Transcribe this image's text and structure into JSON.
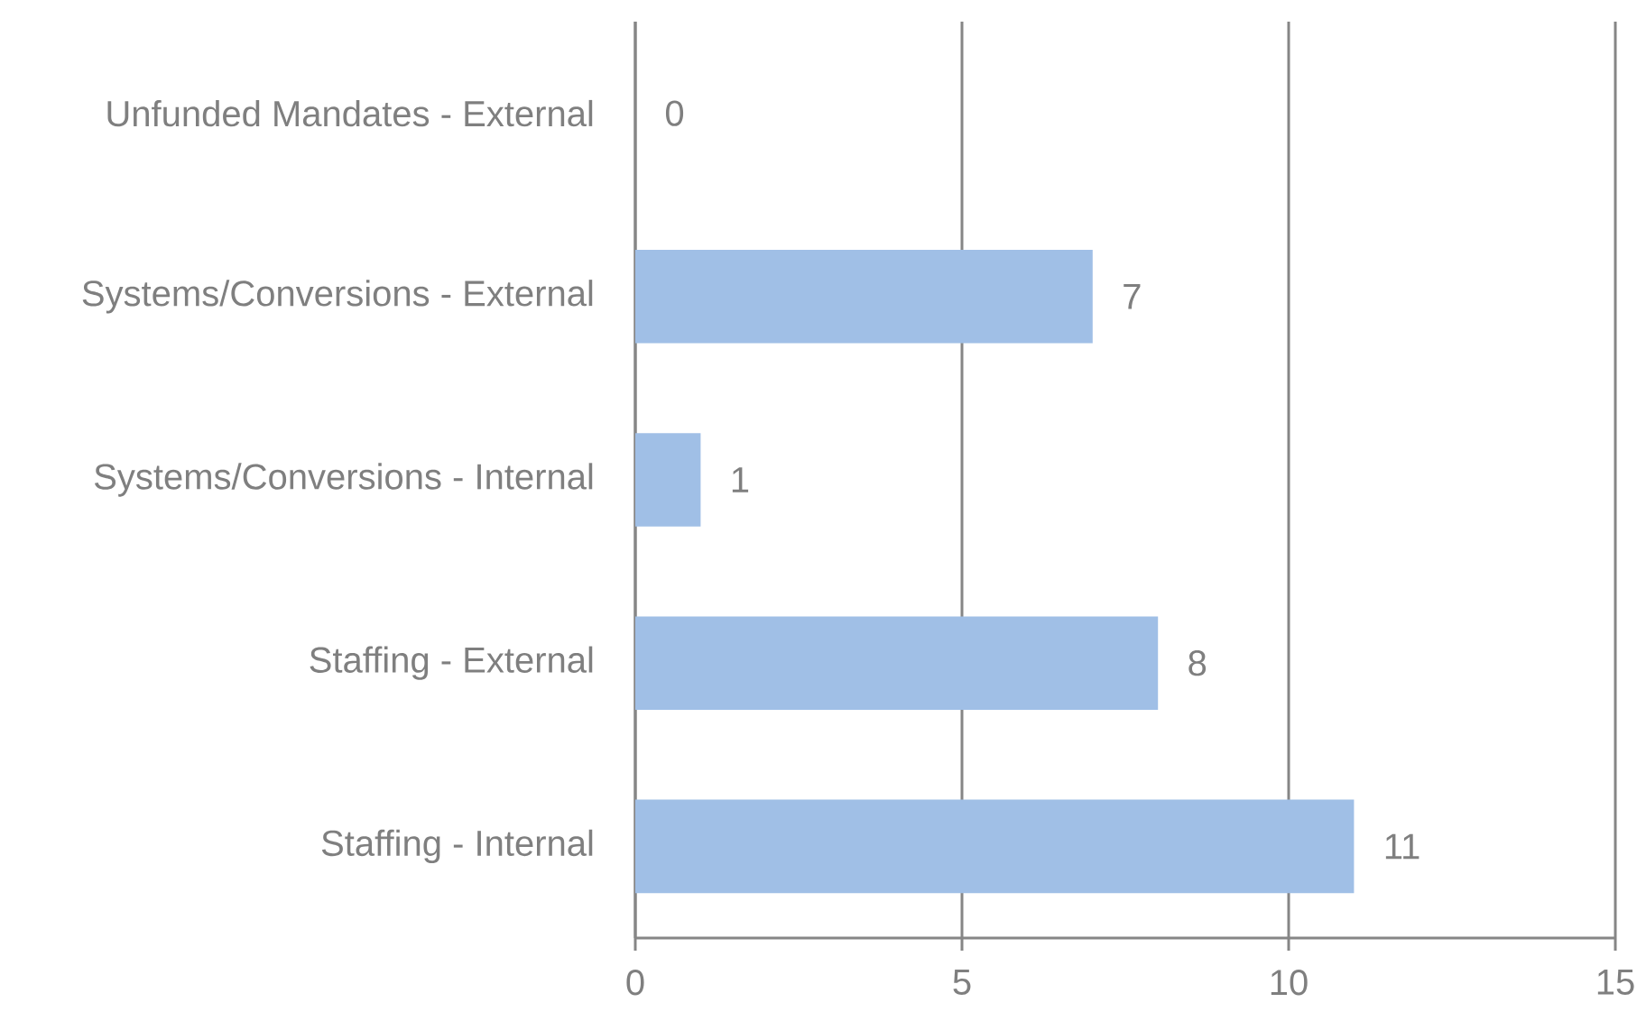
{
  "chart_data": {
    "type": "bar",
    "orientation": "horizontal",
    "categories": [
      "Unfunded Mandates - External",
      "Systems/Conversions - External",
      "Systems/Conversions - Internal",
      "Staffing - External",
      "Staffing - Internal"
    ],
    "values": [
      0,
      7,
      1,
      8,
      11
    ],
    "color": "#a0bfe6",
    "xlim": [
      0,
      15
    ],
    "xticks": [
      0,
      5,
      10,
      15
    ],
    "grid": "x",
    "data_labels": true
  }
}
